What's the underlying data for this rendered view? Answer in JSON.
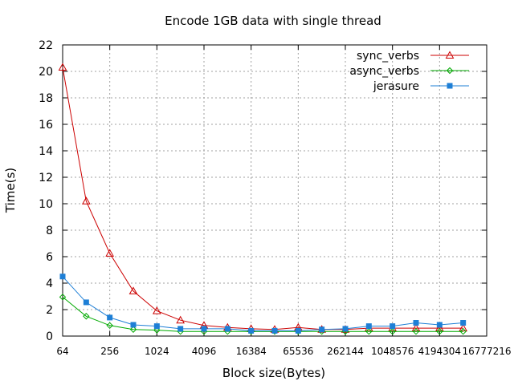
{
  "chart_data": {
    "type": "line",
    "title": "Encode 1GB data with single thread",
    "xlabel": "Block size(Bytes)",
    "ylabel": "Time(s)",
    "x_scale": "log2",
    "grid": true,
    "legend_position": "top-right",
    "xlim": [
      64,
      16777216
    ],
    "ylim": [
      0,
      22
    ],
    "x_ticks": [
      64,
      256,
      1024,
      4096,
      16384,
      65536,
      262144,
      1048576,
      4194304,
      16777216
    ],
    "y_ticks": [
      0,
      2,
      4,
      6,
      8,
      10,
      12,
      14,
      16,
      18,
      20,
      22
    ],
    "x": [
      64,
      128,
      256,
      512,
      1024,
      2048,
      4096,
      8192,
      16384,
      32768,
      65536,
      131072,
      262144,
      524288,
      1048576,
      2097152,
      4194304,
      8388608
    ],
    "series": [
      {
        "name": "sync_verbs",
        "color": "#cc0000",
        "marker": "triangle-open",
        "values": [
          20.3,
          10.2,
          6.25,
          3.4,
          1.9,
          1.2,
          0.8,
          0.65,
          0.55,
          0.5,
          0.65,
          0.5,
          0.5,
          0.6,
          0.6,
          0.6,
          0.6,
          0.6
        ]
      },
      {
        "name": "async_verbs",
        "color": "#00aa00",
        "marker": "diamond-open",
        "values": [
          2.95,
          1.5,
          0.8,
          0.5,
          0.45,
          0.35,
          0.35,
          0.35,
          0.35,
          0.35,
          0.35,
          0.35,
          0.35,
          0.35,
          0.35,
          0.35,
          0.35,
          0.35
        ]
      },
      {
        "name": "jerasure",
        "color": "#1e7fd6",
        "marker": "square-filled",
        "values": [
          4.5,
          2.55,
          1.4,
          0.85,
          0.75,
          0.55,
          0.55,
          0.55,
          0.4,
          0.4,
          0.4,
          0.5,
          0.55,
          0.75,
          0.75,
          1.0,
          0.85,
          1.0
        ]
      }
    ]
  }
}
